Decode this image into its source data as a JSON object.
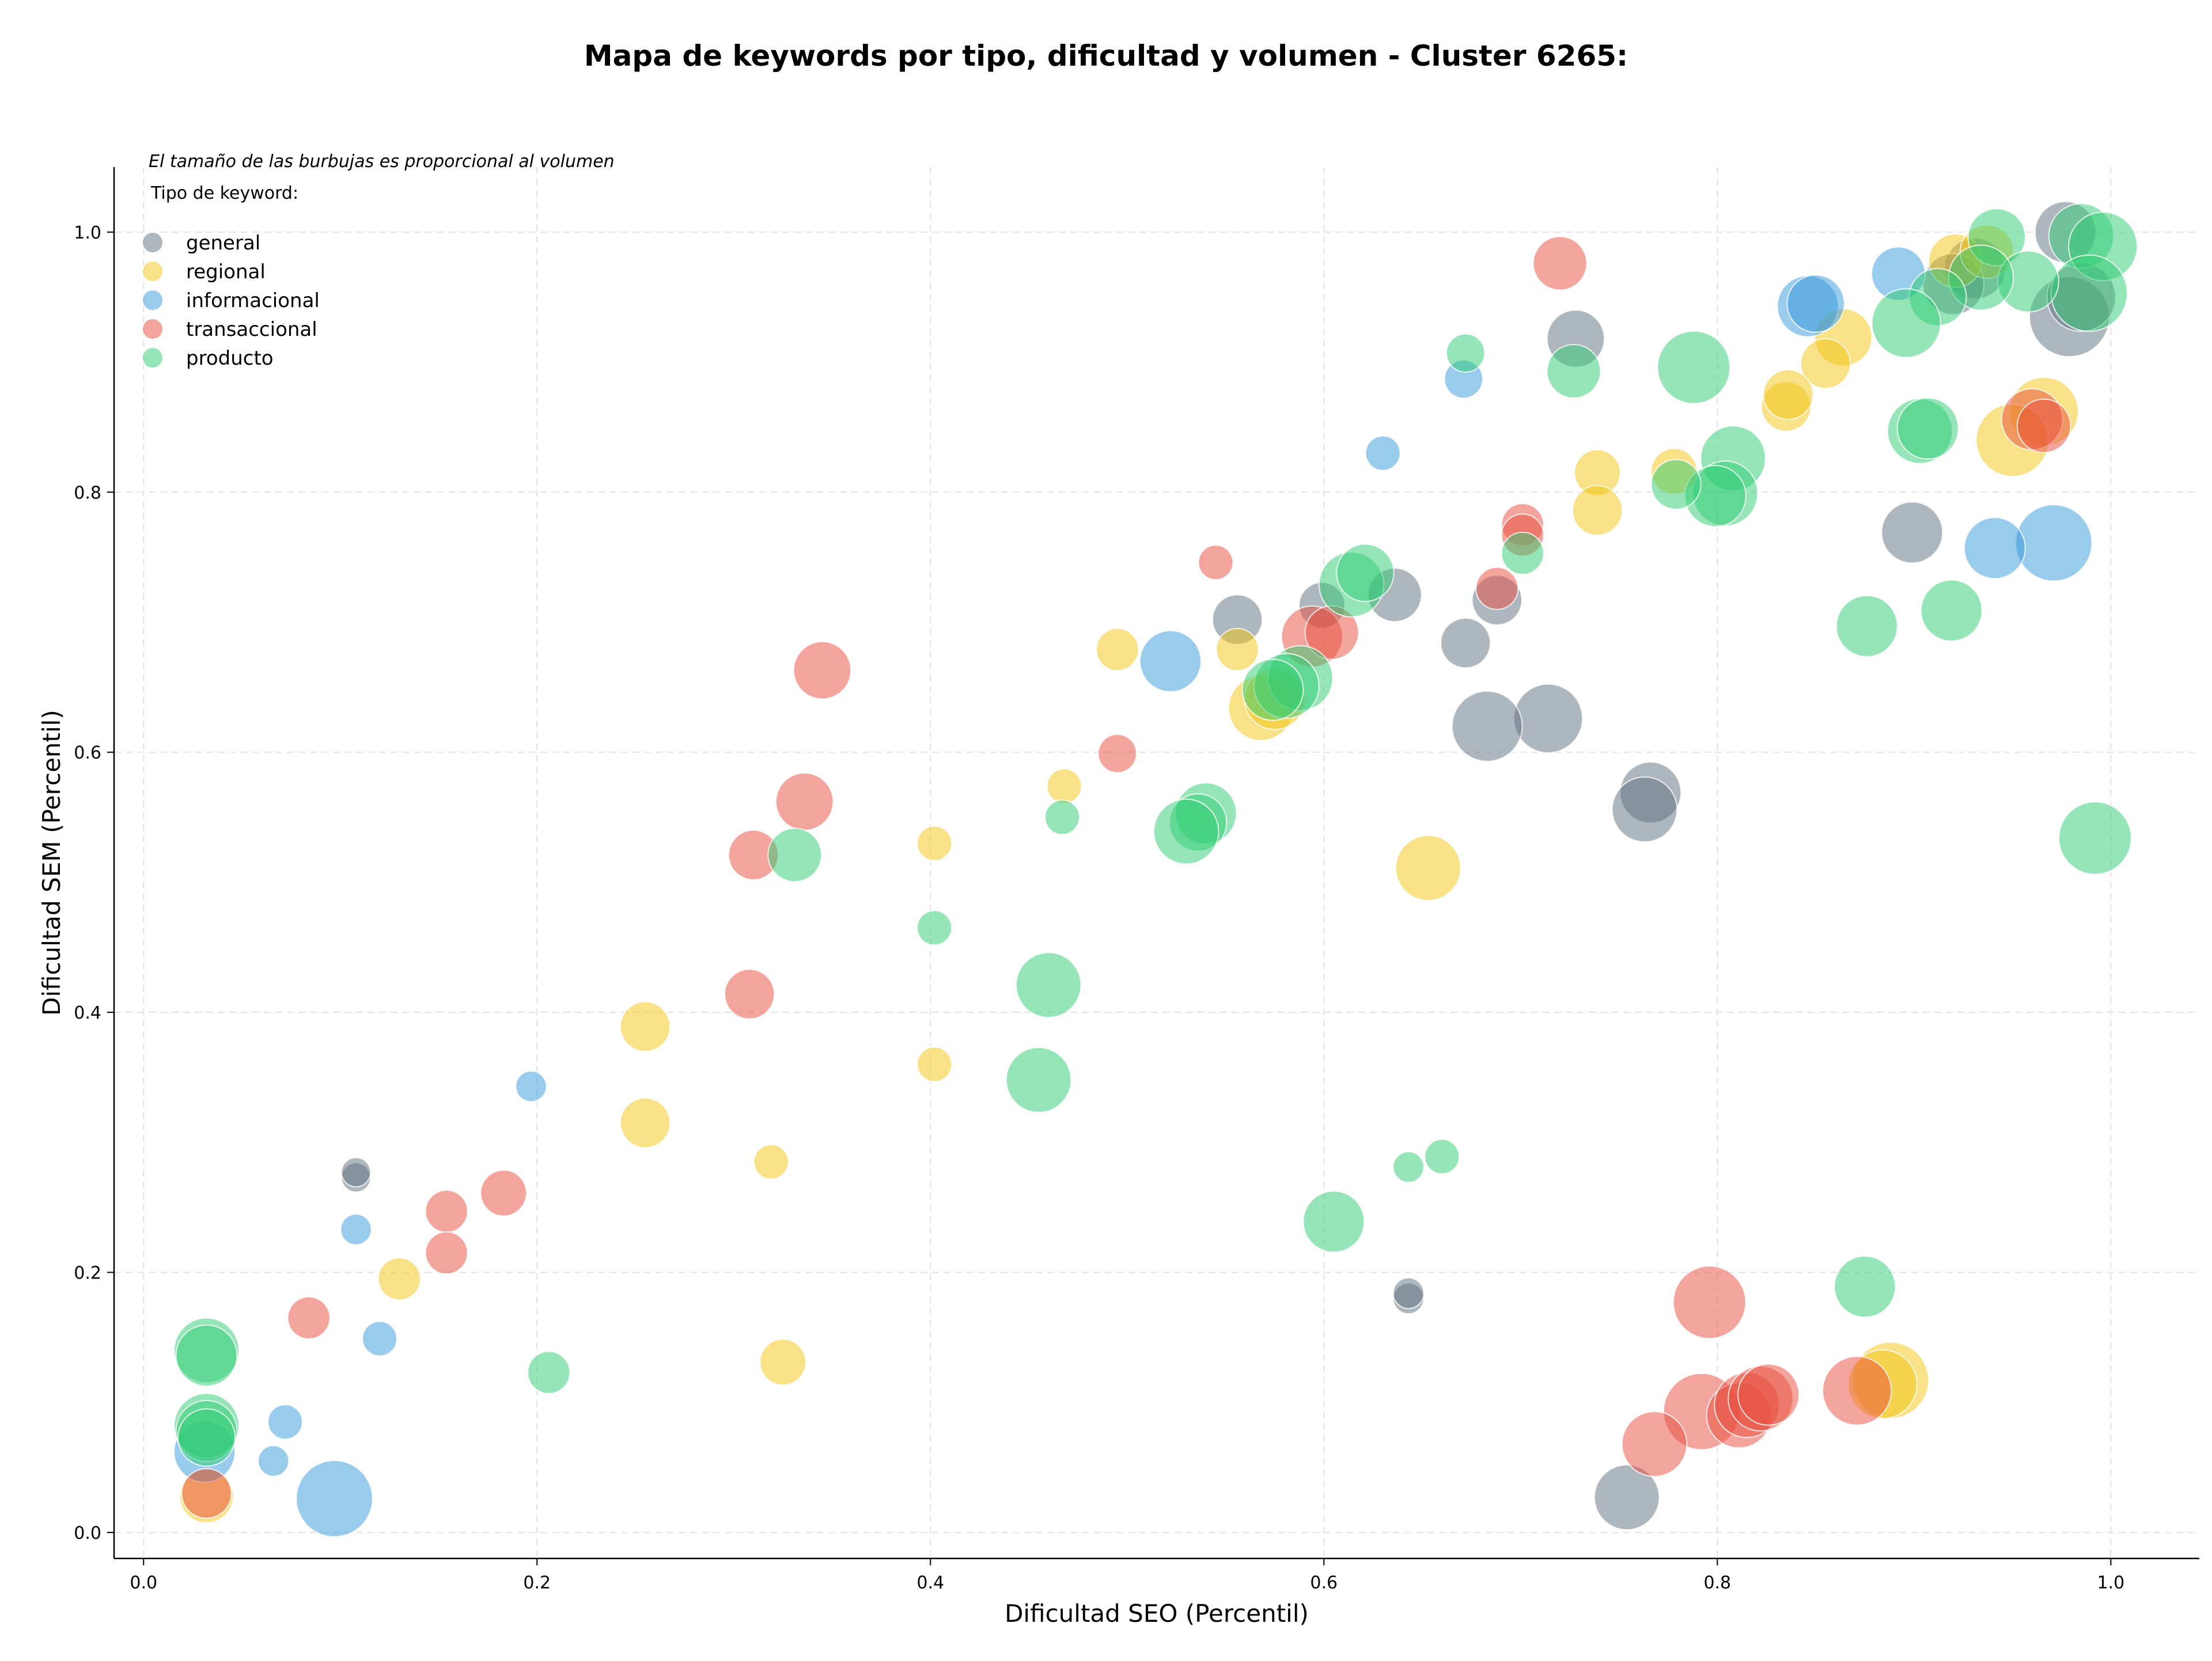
{
  "chart_data": {
    "type": "scatter",
    "title": "Mapa de keywords por tipo, dificultad y volumen - Cluster 6265:",
    "xlabel": "Dificultad SEO (Percentil)",
    "ylabel": "Dificultad SEM (Percentil)",
    "xlim": [
      -0.015,
      1.045
    ],
    "ylim": [
      -0.02,
      1.05
    ],
    "xticks": [
      "0.0",
      "0.2",
      "0.4",
      "0.6",
      "0.8",
      "1.0"
    ],
    "yticks": [
      "0.0",
      "0.2",
      "0.4",
      "0.6",
      "0.8",
      "1.0"
    ],
    "grid": true,
    "annotation": "El tamaño de las burbujas es proporcional al volumen",
    "legend_title": "Tipo de keyword:",
    "legend_position": "top-left",
    "series": [
      {
        "name": "general",
        "color": "#5d6d7e",
        "points": [
          [
            0.977,
            1.0,
            0.5
          ],
          [
            0.979,
            0.935,
            0.75
          ],
          [
            0.985,
            0.95,
            0.6
          ],
          [
            0.931,
            0.972,
            0.5
          ],
          [
            0.92,
            0.96,
            0.5
          ],
          [
            0.899,
            0.769,
            0.5
          ],
          [
            0.728,
            0.918,
            0.45
          ],
          [
            0.714,
            0.626,
            0.6
          ],
          [
            0.683,
            0.62,
            0.62
          ],
          [
            0.766,
            0.569,
            0.5
          ],
          [
            0.763,
            0.556,
            0.55
          ],
          [
            0.754,
            0.027,
            0.55
          ],
          [
            0.636,
            0.721,
            0.4
          ],
          [
            0.599,
            0.713,
            0.3
          ],
          [
            0.556,
            0.702,
            0.35
          ],
          [
            0.672,
            0.684,
            0.35
          ],
          [
            0.688,
            0.717,
            0.35
          ],
          [
            0.108,
            0.273,
            0.08
          ],
          [
            0.108,
            0.277,
            0.08
          ],
          [
            0.643,
            0.18,
            0.1
          ],
          [
            0.643,
            0.184,
            0.1
          ]
        ]
      },
      {
        "name": "regional",
        "color": "#f1c40f",
        "points": [
          [
            0.921,
            0.978,
            0.4
          ],
          [
            0.937,
            0.985,
            0.4
          ],
          [
            0.966,
            0.862,
            0.6
          ],
          [
            0.95,
            0.84,
            0.65
          ],
          [
            0.864,
            0.919,
            0.45
          ],
          [
            0.855,
            0.899,
            0.35
          ],
          [
            0.835,
            0.866,
            0.35
          ],
          [
            0.836,
            0.875,
            0.35
          ],
          [
            0.778,
            0.816,
            0.3
          ],
          [
            0.739,
            0.815,
            0.3
          ],
          [
            0.739,
            0.786,
            0.35
          ],
          [
            0.888,
            0.117,
            0.7
          ],
          [
            0.884,
            0.114,
            0.6
          ],
          [
            0.653,
            0.511,
            0.55
          ],
          [
            0.568,
            0.634,
            0.55
          ],
          [
            0.575,
            0.641,
            0.5
          ],
          [
            0.556,
            0.679,
            0.25
          ],
          [
            0.495,
            0.679,
            0.25
          ],
          [
            0.468,
            0.574,
            0.15
          ],
          [
            0.402,
            0.53,
            0.15
          ],
          [
            0.402,
            0.36,
            0.15
          ],
          [
            0.255,
            0.389,
            0.35
          ],
          [
            0.255,
            0.315,
            0.35
          ],
          [
            0.319,
            0.285,
            0.15
          ],
          [
            0.325,
            0.131,
            0.3
          ],
          [
            0.13,
            0.195,
            0.25
          ],
          [
            0.032,
            0.028,
            0.4
          ]
        ]
      },
      {
        "name": "informacional",
        "color": "#3498db",
        "points": [
          [
            0.892,
            0.968,
            0.4
          ],
          [
            0.846,
            0.943,
            0.5
          ],
          [
            0.85,
            0.945,
            0.45
          ],
          [
            0.971,
            0.761,
            0.7
          ],
          [
            0.941,
            0.757,
            0.5
          ],
          [
            0.63,
            0.83,
            0.15
          ],
          [
            0.671,
            0.887,
            0.2
          ],
          [
            0.522,
            0.67,
            0.5
          ],
          [
            0.197,
            0.343,
            0.1
          ],
          [
            0.108,
            0.233,
            0.1
          ],
          [
            0.12,
            0.149,
            0.15
          ],
          [
            0.072,
            0.085,
            0.15
          ],
          [
            0.066,
            0.055,
            0.1
          ],
          [
            0.097,
            0.026,
            0.7
          ],
          [
            0.031,
            0.062,
            0.5
          ]
        ]
      },
      {
        "name": "transaccional",
        "color": "#e74c3c",
        "points": [
          [
            0.72,
            0.976,
            0.4
          ],
          [
            0.96,
            0.856,
            0.5
          ],
          [
            0.966,
            0.851,
            0.4
          ],
          [
            0.701,
            0.775,
            0.25
          ],
          [
            0.701,
            0.767,
            0.25
          ],
          [
            0.688,
            0.726,
            0.25
          ],
          [
            0.545,
            0.746,
            0.15
          ],
          [
            0.594,
            0.689,
            0.5
          ],
          [
            0.604,
            0.692,
            0.4
          ],
          [
            0.495,
            0.599,
            0.2
          ],
          [
            0.345,
            0.663,
            0.45
          ],
          [
            0.336,
            0.562,
            0.45
          ],
          [
            0.31,
            0.521,
            0.35
          ],
          [
            0.308,
            0.414,
            0.35
          ],
          [
            0.154,
            0.247,
            0.25
          ],
          [
            0.154,
            0.215,
            0.25
          ],
          [
            0.183,
            0.261,
            0.3
          ],
          [
            0.084,
            0.165,
            0.25
          ],
          [
            0.796,
            0.177,
            0.65
          ],
          [
            0.792,
            0.093,
            0.7
          ],
          [
            0.768,
            0.068,
            0.55
          ],
          [
            0.811,
            0.09,
            0.55
          ],
          [
            0.815,
            0.098,
            0.55
          ],
          [
            0.822,
            0.103,
            0.55
          ],
          [
            0.826,
            0.106,
            0.5
          ],
          [
            0.871,
            0.109,
            0.6
          ],
          [
            0.032,
            0.03,
            0.35
          ]
        ]
      },
      {
        "name": "producto",
        "color": "#2ecc71",
        "points": [
          [
            0.942,
            0.996,
            0.45
          ],
          [
            0.985,
            0.997,
            0.55
          ],
          [
            0.996,
            0.989,
            0.6
          ],
          [
            0.989,
            0.953,
            0.7
          ],
          [
            0.958,
            0.962,
            0.5
          ],
          [
            0.934,
            0.965,
            0.55
          ],
          [
            0.912,
            0.95,
            0.45
          ],
          [
            0.896,
            0.93,
            0.6
          ],
          [
            0.903,
            0.847,
            0.55
          ],
          [
            0.907,
            0.849,
            0.5
          ],
          [
            0.808,
            0.826,
            0.55
          ],
          [
            0.804,
            0.799,
            0.55
          ],
          [
            0.799,
            0.797,
            0.5
          ],
          [
            0.779,
            0.806,
            0.35
          ],
          [
            0.788,
            0.896,
            0.65
          ],
          [
            0.727,
            0.893,
            0.4
          ],
          [
            0.672,
            0.907,
            0.2
          ],
          [
            0.701,
            0.753,
            0.25
          ],
          [
            0.614,
            0.729,
            0.55
          ],
          [
            0.621,
            0.738,
            0.45
          ],
          [
            0.588,
            0.657,
            0.55
          ],
          [
            0.581,
            0.651,
            0.55
          ],
          [
            0.574,
            0.648,
            0.5
          ],
          [
            0.54,
            0.553,
            0.5
          ],
          [
            0.536,
            0.546,
            0.45
          ],
          [
            0.53,
            0.539,
            0.55
          ],
          [
            0.46,
            0.421,
            0.55
          ],
          [
            0.455,
            0.348,
            0.55
          ],
          [
            0.467,
            0.55,
            0.15
          ],
          [
            0.402,
            0.465,
            0.15
          ],
          [
            0.331,
            0.521,
            0.4
          ],
          [
            0.876,
            0.697,
            0.5
          ],
          [
            0.919,
            0.709,
            0.5
          ],
          [
            0.992,
            0.534,
            0.65
          ],
          [
            0.875,
            0.189,
            0.5
          ],
          [
            0.66,
            0.289,
            0.15
          ],
          [
            0.643,
            0.281,
            0.1
          ],
          [
            0.605,
            0.239,
            0.5
          ],
          [
            0.206,
            0.123,
            0.25
          ],
          [
            0.032,
            0.14,
            0.55
          ],
          [
            0.032,
            0.136,
            0.5
          ],
          [
            0.032,
            0.082,
            0.55
          ],
          [
            0.032,
            0.078,
            0.5
          ],
          [
            0.032,
            0.073,
            0.45
          ]
        ]
      }
    ]
  }
}
